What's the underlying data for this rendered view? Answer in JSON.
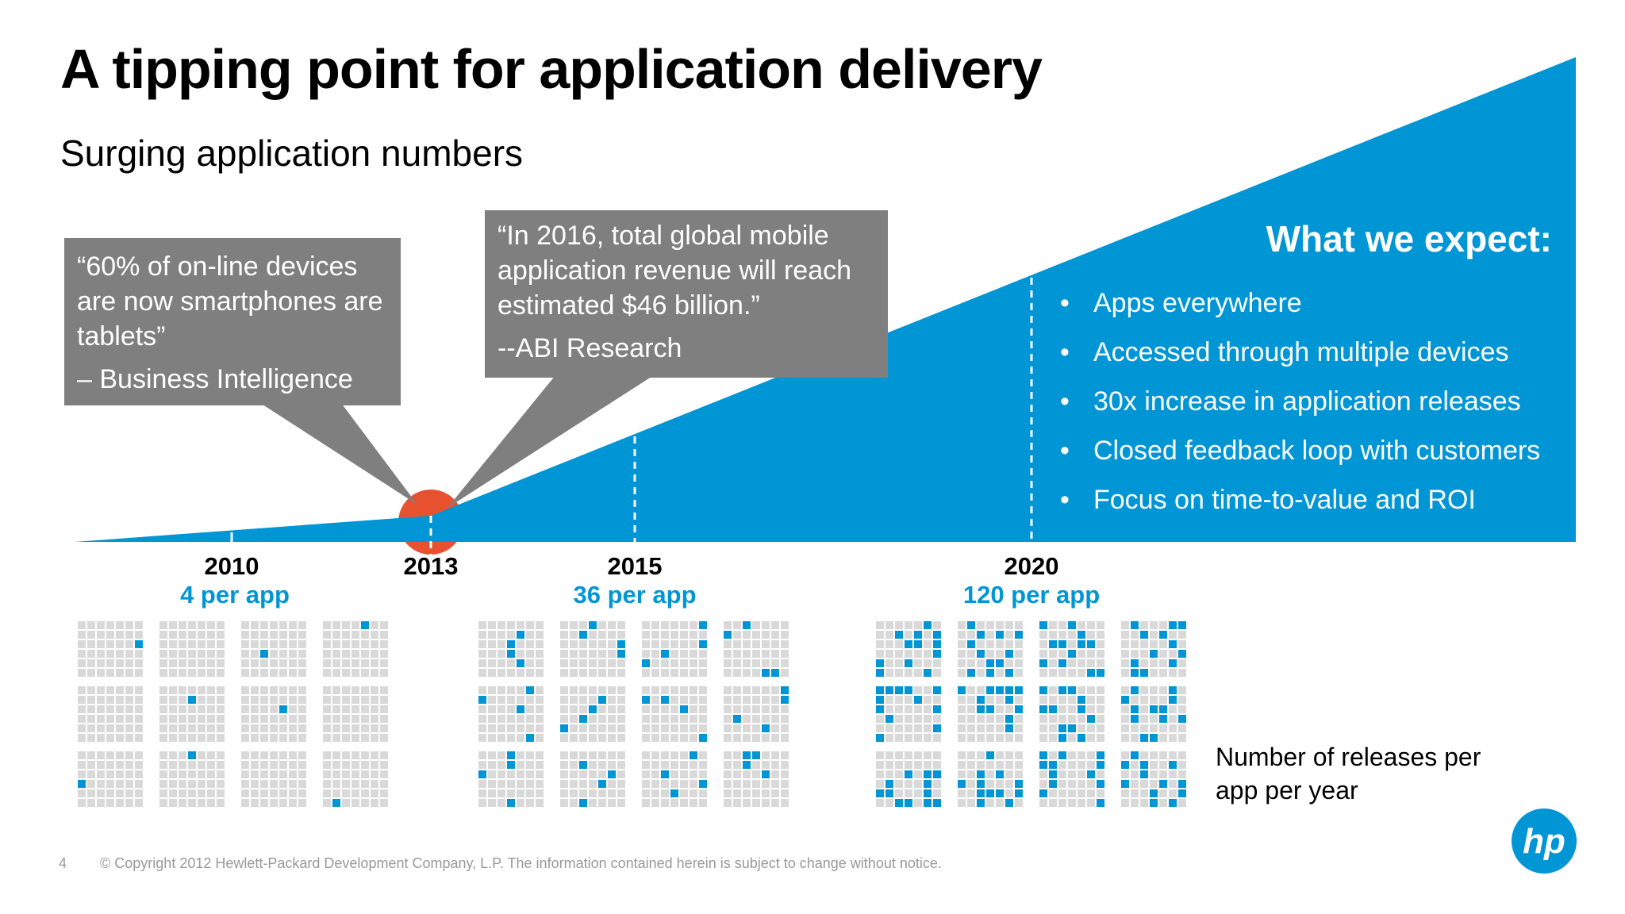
{
  "slide": {
    "title": "A tipping point for application delivery",
    "subtitle": "Surging application numbers",
    "page_number": "4",
    "copyright": "© Copyright 2012 Hewlett-Packard Development Company, L.P.  The information contained herein is subject to change without notice."
  },
  "callouts": [
    {
      "quote": "“60% of on-line devices are now smartphones are tablets”",
      "source": "– Business Intelligence"
    },
    {
      "quote": "“In 2016, total global mobile application revenue will reach estimated $46 billion.”",
      "source": "--ABI Research"
    }
  ],
  "expect": {
    "title": "What we expect:",
    "items": [
      "Apps everywhere",
      "Accessed through multiple devices",
      "30x increase in application releases",
      "Closed feedback loop with customers",
      "Focus on time-to-value and ROI"
    ]
  },
  "timeline": {
    "years": [
      "2010",
      "2013",
      "2015",
      "2020"
    ],
    "rates": [
      "4 per app",
      "36 per app",
      "120 per app"
    ]
  },
  "releases_label": "Number of releases per app per year",
  "colors": {
    "accent_blue": "#0096d6",
    "callout_gray": "#7f7f7f",
    "tipping_point_red": "#e8512f",
    "grid_cell_gray": "#d9d9d9"
  },
  "icons": {
    "logo": "hp-logo-icon"
  }
}
